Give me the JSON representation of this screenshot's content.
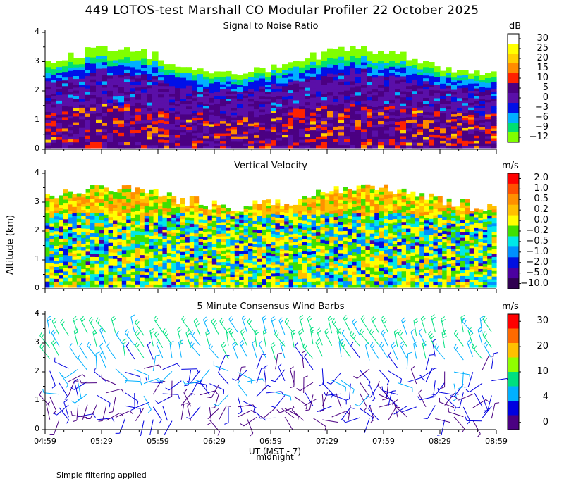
{
  "title": "449 LOTOS-test Marshall CO Modular Profiler 22 October 2025",
  "y_axis_label": "Altitude (km)",
  "x_axis_label": "UT  (MST - 7)",
  "midnight_label": "midnight",
  "footnote": "Simple filtering applied",
  "x_ticks": [
    "04:59",
    "05:29",
    "05:59",
    "06:29",
    "06:59",
    "07:29",
    "07:59",
    "08:29",
    "08:59"
  ],
  "y_ticks": [
    "0",
    "1",
    "2",
    "3",
    "4"
  ],
  "panels": [
    {
      "title": "Signal to Noise Ratio",
      "unit": "dB",
      "colorbar": {
        "labels": [
          "30",
          "25",
          "20",
          "15",
          "10",
          "5",
          "0",
          "−3",
          "−6",
          "−9",
          "−12"
        ],
        "colors": [
          "#ffffff",
          "#ffff00",
          "#ffd000",
          "#ff8c00",
          "#ff2200",
          "#4b0082",
          "#5a0fa8",
          "#0010e8",
          "#00b0ff",
          "#00e070",
          "#80ff00"
        ]
      }
    },
    {
      "title": "Vertical Velocity",
      "unit": "m/s",
      "colorbar": {
        "labels": [
          "2.0",
          "1.0",
          "0.5",
          "0.2",
          "0.0",
          "−0.2",
          "−0.5",
          "−1.0",
          "−2.0",
          "−5.0",
          "−10.0"
        ],
        "colors": [
          "#ff0000",
          "#ff5000",
          "#ff9000",
          "#ffc000",
          "#ffff00",
          "#40e000",
          "#00e8e8",
          "#0090ff",
          "#0010e0",
          "#4b00a0",
          "#300050"
        ]
      }
    },
    {
      "title": "5 Minute Consensus Wind Barbs",
      "unit": "m/s",
      "colorbar": {
        "labels": [
          "30",
          "20",
          "10",
          "4",
          "0"
        ],
        "colors": [
          "#ff0000",
          "#ff6a00",
          "#ffc000",
          "#90ff00",
          "#00e080",
          "#00b0ff",
          "#0000e0",
          "#4b0082"
        ]
      }
    }
  ],
  "chart_data": [
    {
      "type": "heatmap",
      "title": "Signal to Noise Ratio",
      "xlabel": "UT  (MST - 7)",
      "ylabel": "Altitude (km)",
      "x_range": [
        "04:59",
        "08:59"
      ],
      "ylim": [
        0,
        4
      ],
      "colorbar_unit": "dB",
      "colorbar_range": [
        -12,
        30
      ],
      "data_top_altitude_km": [
        2.9,
        3.3
      ]
    },
    {
      "type": "heatmap",
      "title": "Vertical Velocity",
      "xlabel": "UT  (MST - 7)",
      "ylabel": "Altitude (km)",
      "x_range": [
        "04:59",
        "08:59"
      ],
      "ylim": [
        0,
        4
      ],
      "colorbar_unit": "m/s",
      "colorbar_range": [
        -10.0,
        2.0
      ],
      "data_top_altitude_km": [
        3.0,
        3.5
      ]
    },
    {
      "type": "scatter",
      "title": "5 Minute Consensus Wind Barbs",
      "xlabel": "UT  (MST - 7)",
      "ylabel": "Altitude (km)",
      "x_range": [
        "04:59",
        "08:59"
      ],
      "ylim": [
        0,
        4
      ],
      "colorbar_unit": "m/s",
      "colorbar_range": [
        0,
        30
      ],
      "speed_by_height": [
        {
          "altitude_km": 0.5,
          "speed_ms": 3
        },
        {
          "altitude_km": 1.5,
          "speed_ms": 4
        },
        {
          "altitude_km": 2.0,
          "speed_ms": 5
        },
        {
          "altitude_km": 2.5,
          "speed_ms": 8
        },
        {
          "altitude_km": 3.0,
          "speed_ms": 10
        },
        {
          "altitude_km": 3.5,
          "speed_ms": 10
        }
      ]
    }
  ]
}
